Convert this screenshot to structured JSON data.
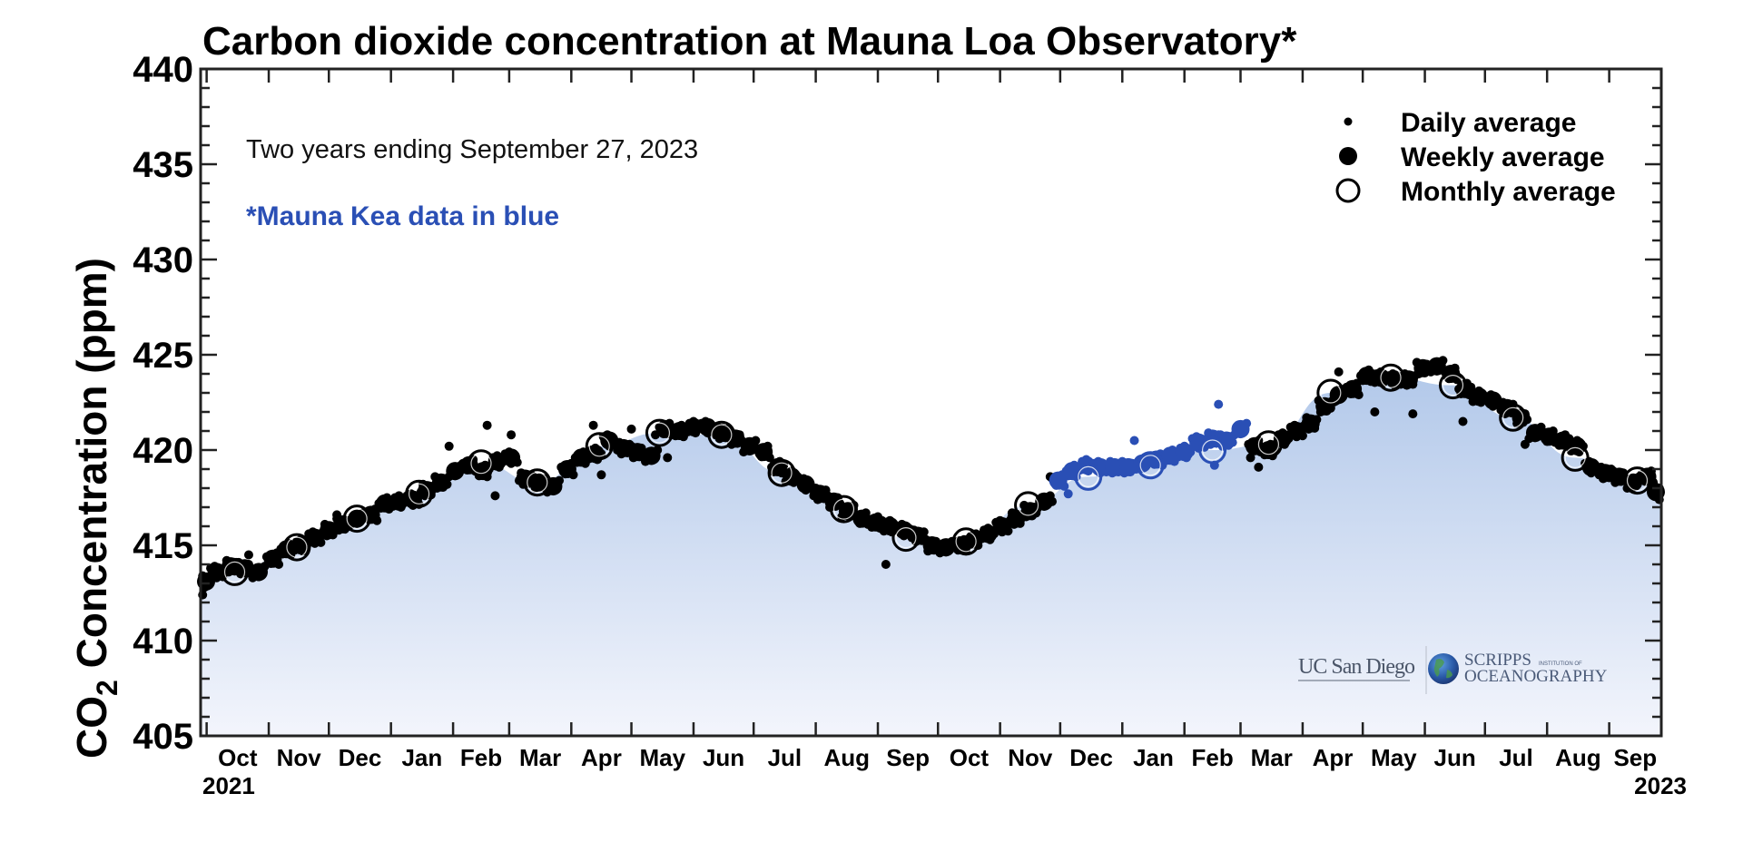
{
  "chart_data": {
    "type": "scatter",
    "title": "Carbon dioxide concentration at Mauna Loa Observatory*",
    "subtitle": "Two years ending September 27, 2023",
    "note": "*Mauna Kea data in blue",
    "ylabel_main": "CO",
    "ylabel_sub": "2",
    "ylabel_rest": " Concentration (ppm)",
    "xlabel": "",
    "ylim": [
      405,
      440
    ],
    "y_major_ticks": [
      405,
      410,
      415,
      420,
      425,
      430,
      435,
      440
    ],
    "y_minor_step": 1,
    "xlim": [
      "2021-09-28",
      "2023-09-27"
    ],
    "x_month_ticks": [
      "2021-10-01",
      "2021-11-01",
      "2021-12-01",
      "2022-01-01",
      "2022-02-01",
      "2022-03-01",
      "2022-04-01",
      "2022-05-01",
      "2022-06-01",
      "2022-07-01",
      "2022-08-01",
      "2022-09-01",
      "2022-10-01",
      "2022-11-01",
      "2022-12-01",
      "2023-01-01",
      "2023-02-01",
      "2023-03-01",
      "2023-04-01",
      "2023-05-01",
      "2023-06-01",
      "2023-07-01",
      "2023-08-01",
      "2023-09-01"
    ],
    "x_tick_labels": [
      "Oct",
      "Nov",
      "Dec",
      "Jan",
      "Feb",
      "Mar",
      "Apr",
      "May",
      "Jun",
      "Jul",
      "Aug",
      "Sep",
      "Oct",
      "Nov",
      "Dec",
      "Jan",
      "Feb",
      "Mar",
      "Apr",
      "May",
      "Jun",
      "Jul",
      "Aug",
      "Sep"
    ],
    "x_year_labels": {
      "start": "2021",
      "end": "2023"
    },
    "grid": false,
    "legend": {
      "position": "top-right",
      "entries": [
        {
          "label": "Daily average",
          "marker": "small-filled-circle"
        },
        {
          "label": "Weekly average",
          "marker": "large-filled-circle"
        },
        {
          "label": "Monthly average",
          "marker": "open-circle"
        }
      ]
    },
    "colors": {
      "mauna_loa": "#000000",
      "mauna_kea": "#2a4fb5",
      "fill_top": "#b3c9ea",
      "fill_bottom": "#f3f5fc"
    },
    "mauna_kea_period": [
      "2022-11-29",
      "2023-03-04"
    ],
    "monthly": [
      {
        "date": "2021-10-15",
        "value": 413.6
      },
      {
        "date": "2021-11-15",
        "value": 414.9
      },
      {
        "date": "2021-12-15",
        "value": 416.4
      },
      {
        "date": "2022-01-15",
        "value": 417.7
      },
      {
        "date": "2022-02-15",
        "value": 419.3
      },
      {
        "date": "2022-03-15",
        "value": 418.3
      },
      {
        "date": "2022-04-15",
        "value": 420.2
      },
      {
        "date": "2022-05-15",
        "value": 420.9
      },
      {
        "date": "2022-06-15",
        "value": 420.8
      },
      {
        "date": "2022-07-15",
        "value": 418.8
      },
      {
        "date": "2022-08-15",
        "value": 416.9
      },
      {
        "date": "2022-09-15",
        "value": 415.4
      },
      {
        "date": "2022-10-15",
        "value": 415.2
      },
      {
        "date": "2022-11-15",
        "value": 417.1
      },
      {
        "date": "2022-12-15",
        "value": 418.6
      },
      {
        "date": "2023-01-15",
        "value": 419.2
      },
      {
        "date": "2023-02-15",
        "value": 420.0
      },
      {
        "date": "2023-03-15",
        "value": 420.3
      },
      {
        "date": "2023-04-15",
        "value": 423.0
      },
      {
        "date": "2023-05-15",
        "value": 423.8
      },
      {
        "date": "2023-06-15",
        "value": 423.4
      },
      {
        "date": "2023-07-15",
        "value": 421.7
      },
      {
        "date": "2023-08-15",
        "value": 419.6
      },
      {
        "date": "2023-09-15",
        "value": 418.4
      }
    ],
    "weekly": [
      {
        "date": "2021-09-29",
        "value": 413.1
      },
      {
        "date": "2021-10-06",
        "value": 413.6
      },
      {
        "date": "2021-10-13",
        "value": 413.9
      },
      {
        "date": "2021-10-20",
        "value": 413.8
      },
      {
        "date": "2021-10-27",
        "value": 413.6
      },
      {
        "date": "2021-11-03",
        "value": 414.3
      },
      {
        "date": "2021-11-10",
        "value": 414.8
      },
      {
        "date": "2021-11-17",
        "value": 415.0
      },
      {
        "date": "2021-11-24",
        "value": 415.4
      },
      {
        "date": "2021-12-01",
        "value": 415.8
      },
      {
        "date": "2021-12-08",
        "value": 416.1
      },
      {
        "date": "2021-12-15",
        "value": 416.4
      },
      {
        "date": "2021-12-22",
        "value": 416.6
      },
      {
        "date": "2021-12-29",
        "value": 417.2
      },
      {
        "date": "2022-01-05",
        "value": 417.3
      },
      {
        "date": "2022-01-12",
        "value": 417.4
      },
      {
        "date": "2022-01-19",
        "value": 417.9
      },
      {
        "date": "2022-01-26",
        "value": 418.3
      },
      {
        "date": "2022-02-02",
        "value": 418.9
      },
      {
        "date": "2022-02-09",
        "value": 419.2
      },
      {
        "date": "2022-02-16",
        "value": 418.9
      },
      {
        "date": "2022-02-23",
        "value": 419.4
      },
      {
        "date": "2022-03-02",
        "value": 419.6
      },
      {
        "date": "2022-03-09",
        "value": 418.5
      },
      {
        "date": "2022-03-16",
        "value": 418.3
      },
      {
        "date": "2022-03-23",
        "value": 418.1
      },
      {
        "date": "2022-03-30",
        "value": 419.0
      },
      {
        "date": "2022-04-06",
        "value": 419.6
      },
      {
        "date": "2022-04-13",
        "value": 419.8
      },
      {
        "date": "2022-04-20",
        "value": 420.5
      },
      {
        "date": "2022-04-27",
        "value": 420.1
      },
      {
        "date": "2022-05-04",
        "value": 419.9
      },
      {
        "date": "2022-05-11",
        "value": 419.7
      },
      {
        "date": "2022-05-18",
        "value": 421.1
      },
      {
        "date": "2022-05-25",
        "value": 421.0
      },
      {
        "date": "2022-06-01",
        "value": 421.2
      },
      {
        "date": "2022-06-08",
        "value": 421.2
      },
      {
        "date": "2022-06-15",
        "value": 420.9
      },
      {
        "date": "2022-06-22",
        "value": 420.6
      },
      {
        "date": "2022-06-29",
        "value": 420.2
      },
      {
        "date": "2022-07-06",
        "value": 419.9
      },
      {
        "date": "2022-07-13",
        "value": 419.1
      },
      {
        "date": "2022-07-20",
        "value": 418.6
      },
      {
        "date": "2022-07-27",
        "value": 418.2
      },
      {
        "date": "2022-08-03",
        "value": 417.7
      },
      {
        "date": "2022-08-10",
        "value": 417.3
      },
      {
        "date": "2022-08-17",
        "value": 416.8
      },
      {
        "date": "2022-08-24",
        "value": 416.4
      },
      {
        "date": "2022-08-31",
        "value": 416.2
      },
      {
        "date": "2022-09-07",
        "value": 416.0
      },
      {
        "date": "2022-09-14",
        "value": 415.8
      },
      {
        "date": "2022-09-21",
        "value": 415.5
      },
      {
        "date": "2022-09-28",
        "value": 415.0
      },
      {
        "date": "2022-10-05",
        "value": 414.9
      },
      {
        "date": "2022-10-12",
        "value": 415.0
      },
      {
        "date": "2022-10-19",
        "value": 415.3
      },
      {
        "date": "2022-10-26",
        "value": 415.6
      },
      {
        "date": "2022-11-02",
        "value": 416.0
      },
      {
        "date": "2022-11-09",
        "value": 416.4
      },
      {
        "date": "2022-11-16",
        "value": 416.8
      },
      {
        "date": "2022-11-23",
        "value": 417.3
      },
      {
        "date": "2022-11-30",
        "value": 418.4,
        "site": "kea"
      },
      {
        "date": "2022-12-07",
        "value": 418.9,
        "site": "kea"
      },
      {
        "date": "2022-12-14",
        "value": 419.2,
        "site": "kea"
      },
      {
        "date": "2022-12-21",
        "value": 419.1,
        "site": "kea"
      },
      {
        "date": "2022-12-28",
        "value": 419.1,
        "site": "kea"
      },
      {
        "date": "2023-01-04",
        "value": 419.1,
        "site": "kea"
      },
      {
        "date": "2023-01-11",
        "value": 419.3,
        "site": "kea"
      },
      {
        "date": "2023-01-18",
        "value": 419.5,
        "site": "kea"
      },
      {
        "date": "2023-01-25",
        "value": 419.7,
        "site": "kea"
      },
      {
        "date": "2023-02-01",
        "value": 419.9,
        "site": "kea"
      },
      {
        "date": "2023-02-08",
        "value": 420.4,
        "site": "kea"
      },
      {
        "date": "2023-02-15",
        "value": 420.6,
        "site": "kea"
      },
      {
        "date": "2023-02-22",
        "value": 420.5,
        "site": "kea"
      },
      {
        "date": "2023-03-01",
        "value": 421.1,
        "site": "kea"
      },
      {
        "date": "2023-03-08",
        "value": 420.2
      },
      {
        "date": "2023-03-15",
        "value": 420.0
      },
      {
        "date": "2023-03-22",
        "value": 420.6
      },
      {
        "date": "2023-03-29",
        "value": 421.0
      },
      {
        "date": "2023-04-05",
        "value": 421.4
      },
      {
        "date": "2023-04-12",
        "value": 422.3
      },
      {
        "date": "2023-04-19",
        "value": 422.9
      },
      {
        "date": "2023-04-26",
        "value": 423.2
      },
      {
        "date": "2023-05-03",
        "value": 423.9
      },
      {
        "date": "2023-05-10",
        "value": 423.8
      },
      {
        "date": "2023-05-17",
        "value": 423.7
      },
      {
        "date": "2023-05-24",
        "value": 423.7
      },
      {
        "date": "2023-05-31",
        "value": 424.3
      },
      {
        "date": "2023-06-07",
        "value": 424.4
      },
      {
        "date": "2023-06-14",
        "value": 424.0
      },
      {
        "date": "2023-06-21",
        "value": 423.2
      },
      {
        "date": "2023-06-28",
        "value": 422.8
      },
      {
        "date": "2023-07-05",
        "value": 422.6
      },
      {
        "date": "2023-07-12",
        "value": 422.2
      },
      {
        "date": "2023-07-19",
        "value": 421.7
      },
      {
        "date": "2023-07-26",
        "value": 420.9
      },
      {
        "date": "2023-08-02",
        "value": 420.7
      },
      {
        "date": "2023-08-09",
        "value": 420.5
      },
      {
        "date": "2023-08-16",
        "value": 420.2
      },
      {
        "date": "2023-08-23",
        "value": 419.1
      },
      {
        "date": "2023-08-30",
        "value": 418.8
      },
      {
        "date": "2023-09-06",
        "value": 418.6
      },
      {
        "date": "2023-09-13",
        "value": 418.3
      },
      {
        "date": "2023-09-20",
        "value": 418.6
      },
      {
        "date": "2023-09-27",
        "value": 417.8
      }
    ],
    "daily_outliers": [
      {
        "date": "2021-09-29",
        "value": 412.4
      },
      {
        "date": "2021-10-22",
        "value": 414.5
      },
      {
        "date": "2021-12-05",
        "value": 416.6
      },
      {
        "date": "2022-01-12",
        "value": 417.1
      },
      {
        "date": "2022-01-30",
        "value": 420.2
      },
      {
        "date": "2022-02-18",
        "value": 421.3
      },
      {
        "date": "2022-02-22",
        "value": 417.6
      },
      {
        "date": "2022-03-02",
        "value": 420.8
      },
      {
        "date": "2022-03-20",
        "value": 417.8
      },
      {
        "date": "2022-04-12",
        "value": 421.3
      },
      {
        "date": "2022-04-16",
        "value": 418.7
      },
      {
        "date": "2022-05-01",
        "value": 421.1
      },
      {
        "date": "2022-05-13",
        "value": 420.8
      },
      {
        "date": "2022-05-19",
        "value": 419.6
      },
      {
        "date": "2022-09-05",
        "value": 414.0
      },
      {
        "date": "2022-11-26",
        "value": 418.6
      },
      {
        "date": "2022-11-27",
        "value": 417.3
      },
      {
        "date": "2022-12-05",
        "value": 417.7,
        "site": "kea"
      },
      {
        "date": "2023-01-07",
        "value": 420.5,
        "site": "kea"
      },
      {
        "date": "2023-02-16",
        "value": 419.2,
        "site": "kea"
      },
      {
        "date": "2023-02-18",
        "value": 422.4,
        "site": "kea"
      },
      {
        "date": "2023-03-06",
        "value": 419.6
      },
      {
        "date": "2023-03-10",
        "value": 419.1
      },
      {
        "date": "2023-03-31",
        "value": 421.2
      },
      {
        "date": "2023-04-19",
        "value": 424.1
      },
      {
        "date": "2023-05-07",
        "value": 422.0
      },
      {
        "date": "2023-05-26",
        "value": 421.9
      },
      {
        "date": "2023-06-20",
        "value": 421.5
      },
      {
        "date": "2023-07-21",
        "value": 420.3
      },
      {
        "date": "2023-09-26",
        "value": 417.4
      }
    ]
  },
  "logos": {
    "ucsd": "UC San Diego",
    "scripps_line1": "SCRIPPS",
    "scripps_small": "INSTITUTION OF",
    "scripps_line2": "OCEANOGRAPHY"
  }
}
